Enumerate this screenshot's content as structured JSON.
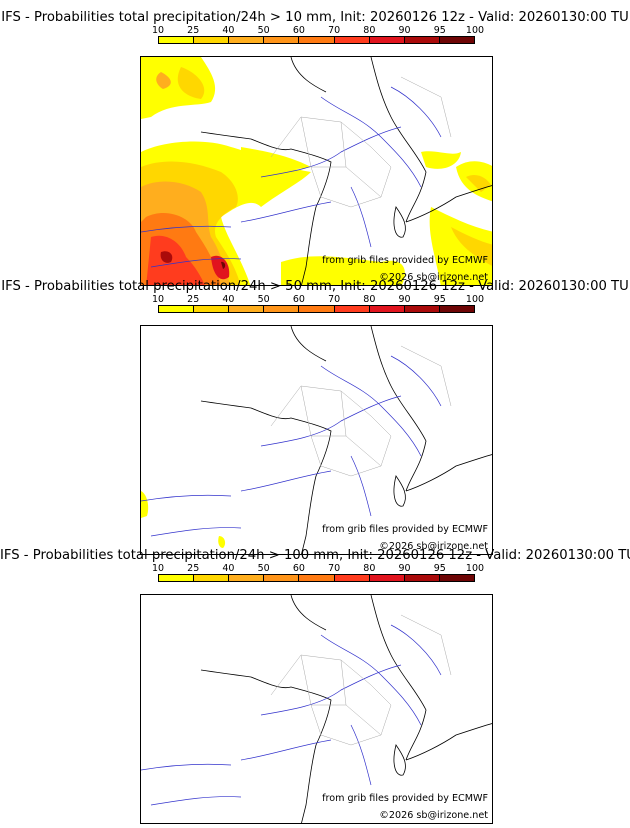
{
  "colorbar": {
    "ticks": [
      "10",
      "25",
      "40",
      "50",
      "60",
      "70",
      "80",
      "90",
      "95",
      "100"
    ],
    "colors": [
      "#ffff00",
      "#ffd700",
      "#ffae1e",
      "#ff9419",
      "#ff7a12",
      "#ff3c1e",
      "#e1141e",
      "#aa0a0a",
      "#6e0505"
    ]
  },
  "panels": [
    {
      "title": "IFS - Probabilities total precipitation/24h > 10 mm, Init: 20260126 12z - Valid: 20260130:00 TU",
      "credit_source": "from grib files provided by ECMWF",
      "credit_copyright": "©2026 sb@irizone.net"
    },
    {
      "title": "IFS - Probabilities total precipitation/24h > 50 mm, Init: 20260126 12z - Valid: 20260130:00 TU",
      "credit_source": "from grib files provided by ECMWF",
      "credit_copyright": "©2026 sb@irizone.net"
    },
    {
      "title": "IFS - Probabilities total precipitation/24h > 100 mm, Init: 20260126 12z - Valid: 20260130:00 TU",
      "credit_source": "from grib files provided by ECMWF",
      "credit_copyright": "©2026 sb@irizone.net"
    }
  ]
}
